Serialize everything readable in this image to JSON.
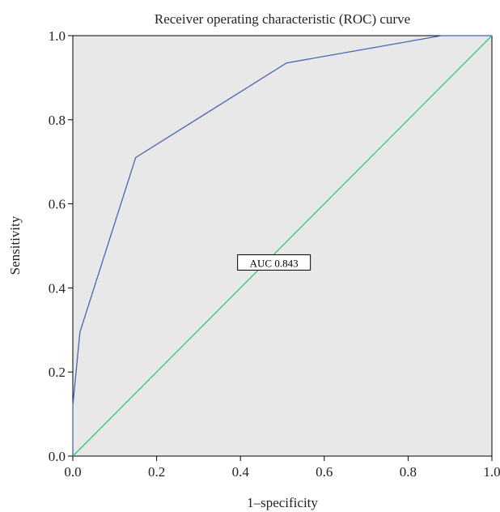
{
  "chart_data": {
    "type": "line",
    "title": "Receiver operating characteristic (ROC) curve",
    "xlabel": "1–specificity",
    "ylabel": "Sensitivity",
    "xlim": [
      0,
      1
    ],
    "ylim": [
      0,
      1
    ],
    "x_ticks": [
      "0.0",
      "0.2",
      "0.4",
      "0.6",
      "0.8",
      "1.0"
    ],
    "y_ticks": [
      "0.0",
      "0.2",
      "0.4",
      "0.6",
      "0.8",
      "1.0"
    ],
    "grid": false,
    "background": "#e8e8e8",
    "annotation": {
      "text": "AUC 0.843",
      "x": 0.48,
      "y": 0.45
    },
    "series": [
      {
        "color": "#4a63b5",
        "x": [
          0.0,
          0.0,
          0.017,
          0.15,
          0.51,
          0.88,
          1.0
        ],
        "y": [
          0.0,
          0.12,
          0.295,
          0.71,
          0.935,
          1.0,
          1.0
        ]
      },
      {
        "color": "#2ecc71",
        "x": [
          0.0,
          1.0
        ],
        "y": [
          0.0,
          1.0
        ]
      }
    ]
  }
}
